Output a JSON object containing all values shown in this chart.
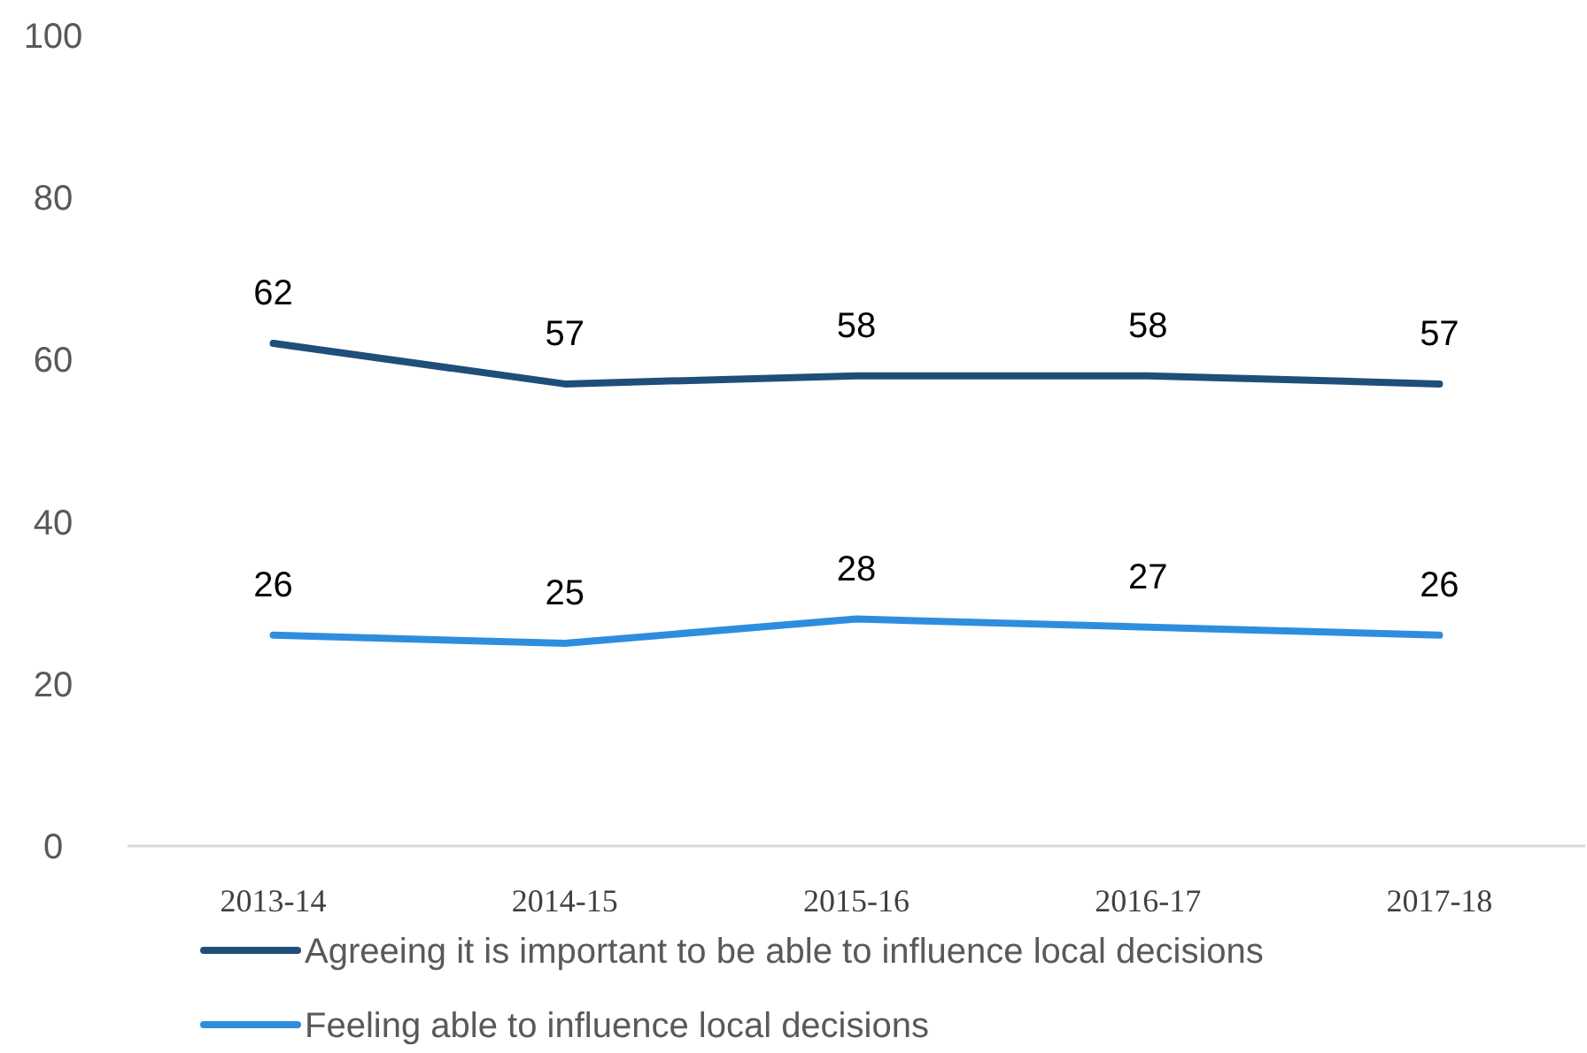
{
  "chart_data": {
    "type": "line",
    "categories": [
      "2013-14",
      "2014-15",
      "2015-16",
      "2016-17",
      "2017-18"
    ],
    "series": [
      {
        "name": "Agreeing it is important to be able to influence local decisions",
        "color": "#1f4e79",
        "values": [
          62,
          57,
          58,
          58,
          57
        ]
      },
      {
        "name": "Feeling able to influence local decisions",
        "color": "#2e8ede",
        "values": [
          26,
          25,
          28,
          27,
          26
        ]
      }
    ],
    "ylim": [
      0,
      100
    ],
    "yticks": [
      0,
      20,
      40,
      60,
      80,
      100
    ],
    "grid": false,
    "data_labels": true,
    "legend": "bottom",
    "marker": "none",
    "line_style": "solid"
  }
}
